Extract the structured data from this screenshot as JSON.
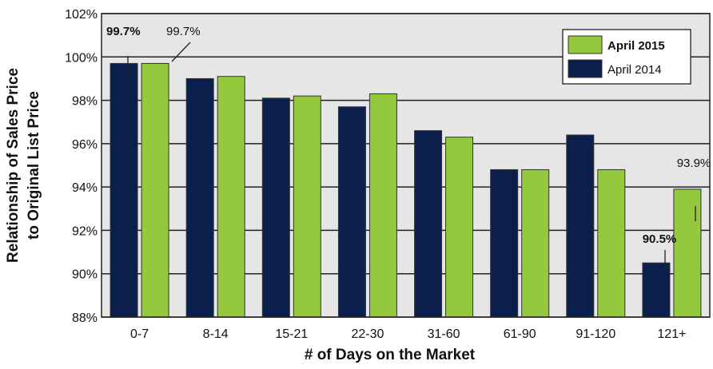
{
  "chart_data": {
    "type": "bar",
    "xlabel": "# of Days on the Market",
    "ylabel_line1": "Relationship of Sales Price",
    "ylabel_line2": "to Original List Price",
    "ylim": [
      88,
      102
    ],
    "y_ticks": [
      "88%",
      "90%",
      "92%",
      "94%",
      "96%",
      "98%",
      "100%",
      "102%"
    ],
    "y_tick_values": [
      88,
      90,
      92,
      94,
      96,
      98,
      100,
      102
    ],
    "categories": [
      "0-7",
      "8-14",
      "15-21",
      "22-30",
      "31-60",
      "61-90",
      "91-120",
      "121+"
    ],
    "series": [
      {
        "name": "April 2014",
        "color": "#0b1f4d",
        "values": [
          99.7,
          99.0,
          98.1,
          97.7,
          96.6,
          94.8,
          96.4,
          90.5
        ]
      },
      {
        "name": "April 2015",
        "color": "#94c83d",
        "values": [
          99.7,
          99.1,
          98.2,
          98.3,
          96.3,
          94.8,
          94.8,
          93.9
        ]
      }
    ],
    "legend": {
      "placement": "top-right",
      "items": [
        "April 2015",
        "April 2014"
      ]
    },
    "annotations": [
      {
        "text": "99.7%",
        "series": "April 2014",
        "category": "0-7",
        "bold": true
      },
      {
        "text": "99.7%",
        "series": "April 2015",
        "category": "0-7",
        "bold": false
      },
      {
        "text": "90.5%",
        "series": "April 2014",
        "category": "121+",
        "bold": true
      },
      {
        "text": "93.9%",
        "series": "April 2015",
        "category": "121+",
        "bold": false
      }
    ],
    "grid": true
  }
}
